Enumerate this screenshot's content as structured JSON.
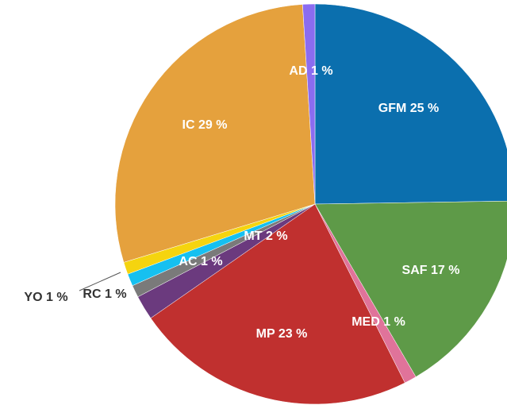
{
  "chart_data": {
    "type": "pie",
    "categories": [
      "GFM",
      "SAF",
      "MED",
      "MP",
      "MT",
      "RC",
      "AC",
      "YO",
      "IC",
      "AD"
    ],
    "values": [
      25,
      17,
      1,
      23,
      2,
      1,
      1,
      1,
      29,
      1
    ],
    "value_labels": [
      "25 %",
      "17 %",
      "1 %",
      "23 %",
      "2 %",
      "1 %",
      "1 %",
      "1 %",
      "29 %",
      "1 %"
    ],
    "colors": [
      "#0b6fae",
      "#5e9a48",
      "#e0739a",
      "#c0302f",
      "#6b3a7e",
      "#7a7a7a",
      "#16c0f0",
      "#f5d40f",
      "#e5a13d",
      "#8b6cf0"
    ]
  }
}
